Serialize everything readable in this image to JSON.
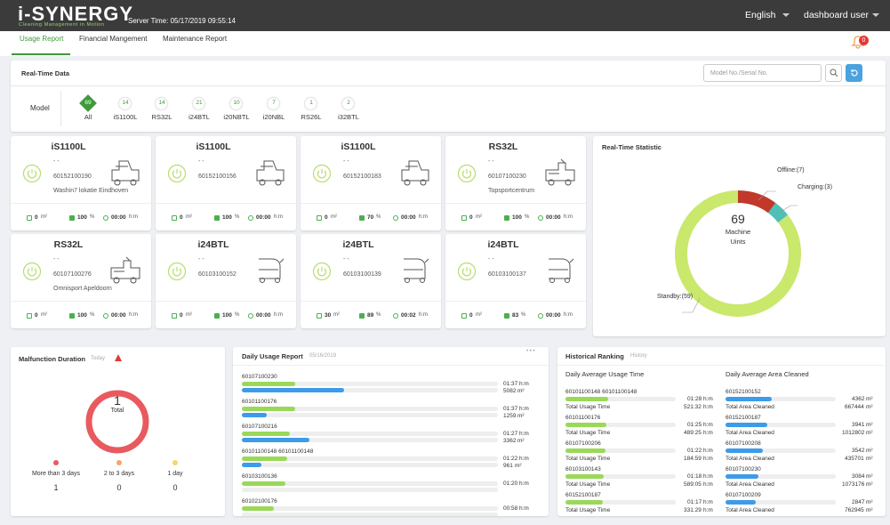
{
  "header": {
    "logo": "i-SYNERGY",
    "tagline": "Cleaning Management in Motion",
    "server_time": "Server Time: 05/17/2019 09:55:14",
    "language": "English",
    "user": "dashboard user",
    "notifications": "0"
  },
  "tabs": [
    "Usage Report",
    "Financial Mangement",
    "Maintenance Report"
  ],
  "units": {
    "area": "m²",
    "battery": "%",
    "time": "h:m"
  },
  "realtime": {
    "title": "Real-Time Data",
    "search_placeholder": "Model No./Serial No.",
    "model_label": "Model",
    "filters": [
      {
        "count": "69",
        "label": "All"
      },
      {
        "count": "14",
        "label": "iS1100L"
      },
      {
        "count": "14",
        "label": "RS32L"
      },
      {
        "count": "21",
        "label": "i24BTL"
      },
      {
        "count": "10",
        "label": "i20NBTL"
      },
      {
        "count": "7",
        "label": "i20NBL"
      },
      {
        "count": "1",
        "label": "RS26L"
      },
      {
        "count": "2",
        "label": "i32BTL"
      }
    ]
  },
  "machines": [
    {
      "name": "iS1100L",
      "status": "- -",
      "serial": "60152100190",
      "location": "Washin7 lokatie Eindhoven",
      "area": "0",
      "battery": "100",
      "time": "00:00",
      "kind": "ride"
    },
    {
      "name": "iS1100L",
      "status": "- -",
      "serial": "60152100156",
      "area": "0",
      "battery": "100",
      "time": "00:00",
      "kind": "ride"
    },
    {
      "name": "iS1100L",
      "status": "- -",
      "serial": "60152100183",
      "area": "0",
      "battery": "70",
      "time": "00:00",
      "kind": "ride"
    },
    {
      "name": "RS32L",
      "status": "- -",
      "serial": "60107100230",
      "location": "Topsportcentrum",
      "area": "0",
      "battery": "100",
      "time": "00:00",
      "kind": "rs"
    },
    {
      "name": "RS32L",
      "status": "- -",
      "serial": "60107100276",
      "location": "Omnisport Apeldoorn",
      "area": "0",
      "battery": "100",
      "time": "00:00",
      "kind": "rs"
    },
    {
      "name": "i24BTL",
      "status": "- -",
      "serial": "60103100152",
      "area": "0",
      "battery": "100",
      "time": "00:00",
      "kind": "walk"
    },
    {
      "name": "i24BTL",
      "status": "- -",
      "serial": "60103100139",
      "area": "30",
      "battery": "89",
      "time": "00:02",
      "kind": "walk"
    },
    {
      "name": "i24BTL",
      "status": "- -",
      "serial": "60103100137",
      "area": "0",
      "battery": "83",
      "time": "00:00",
      "kind": "walk"
    }
  ],
  "statistic": {
    "title": "Real-Time Statistic",
    "total": "69",
    "center_line1": "Machine",
    "center_line2": "Uints",
    "segments": [
      {
        "label": "Offline:(7)",
        "value": 7,
        "color": "#c0392b"
      },
      {
        "label": "Charging:(3)",
        "value": 3,
        "color": "#4fbfb8"
      },
      {
        "label": "Standby:(59)",
        "value": 59,
        "color": "#c9e86c"
      }
    ]
  },
  "malfunction": {
    "title": "Malfunction Duration",
    "subtitle": "Today",
    "total": "1",
    "total_label": "Total",
    "groups": [
      {
        "label": "More than 3 days",
        "value": 1,
        "color": "#e85a5f"
      },
      {
        "label": "2 to 3 days",
        "value": 0,
        "color": "#f5a66b"
      },
      {
        "label": "1 day",
        "value": 0,
        "color": "#f6d56b"
      }
    ]
  },
  "daily": {
    "title": "Daily Usage Report",
    "date": "05/16/2019",
    "dots": "• • •",
    "rows": [
      {
        "serial": "60107100230",
        "time": "01:37",
        "area": 5082
      },
      {
        "serial": "60101100176",
        "time": "01:37",
        "area": 1259
      },
      {
        "serial": "60107100216",
        "time": "01:27",
        "area": 3362
      },
      {
        "serial": "60101100148   60101100148",
        "time": "01:22",
        "area": 961
      },
      {
        "serial": "60103100136",
        "time": "01:20"
      },
      {
        "serial": "60102100176",
        "time": "00:58"
      }
    ]
  },
  "history": {
    "title": "Historical Ranking",
    "subtitle": "History",
    "usage_title": "Daily Average Usage Time",
    "area_title": "Daily Average Area Cleaned",
    "usage_total_label": "Total Usage Time",
    "area_total_label": "Total Area Cleaned",
    "usage": [
      {
        "serial": "60101100148   60101100148",
        "value": "01:28",
        "total": "521:32"
      },
      {
        "serial": "60101100176",
        "value": "01:25",
        "total": "489:25"
      },
      {
        "serial": "60107100206",
        "value": "01:22",
        "total": "184:59"
      },
      {
        "serial": "60103100143",
        "value": "01:18",
        "total": "589:05"
      },
      {
        "serial": "60152100187",
        "value": "01:17",
        "total": "331:29"
      }
    ],
    "area": [
      {
        "serial": "60152100152",
        "value": 4362,
        "total": 667444
      },
      {
        "serial": "60152100187",
        "value": 3941,
        "total": 1012802
      },
      {
        "serial": "60107100208",
        "value": 3542,
        "total": 435701
      },
      {
        "serial": "60107100230",
        "value": 3084,
        "total": 1073176
      },
      {
        "serial": "60107100209",
        "value": 2847,
        "total": 762945
      }
    ]
  }
}
